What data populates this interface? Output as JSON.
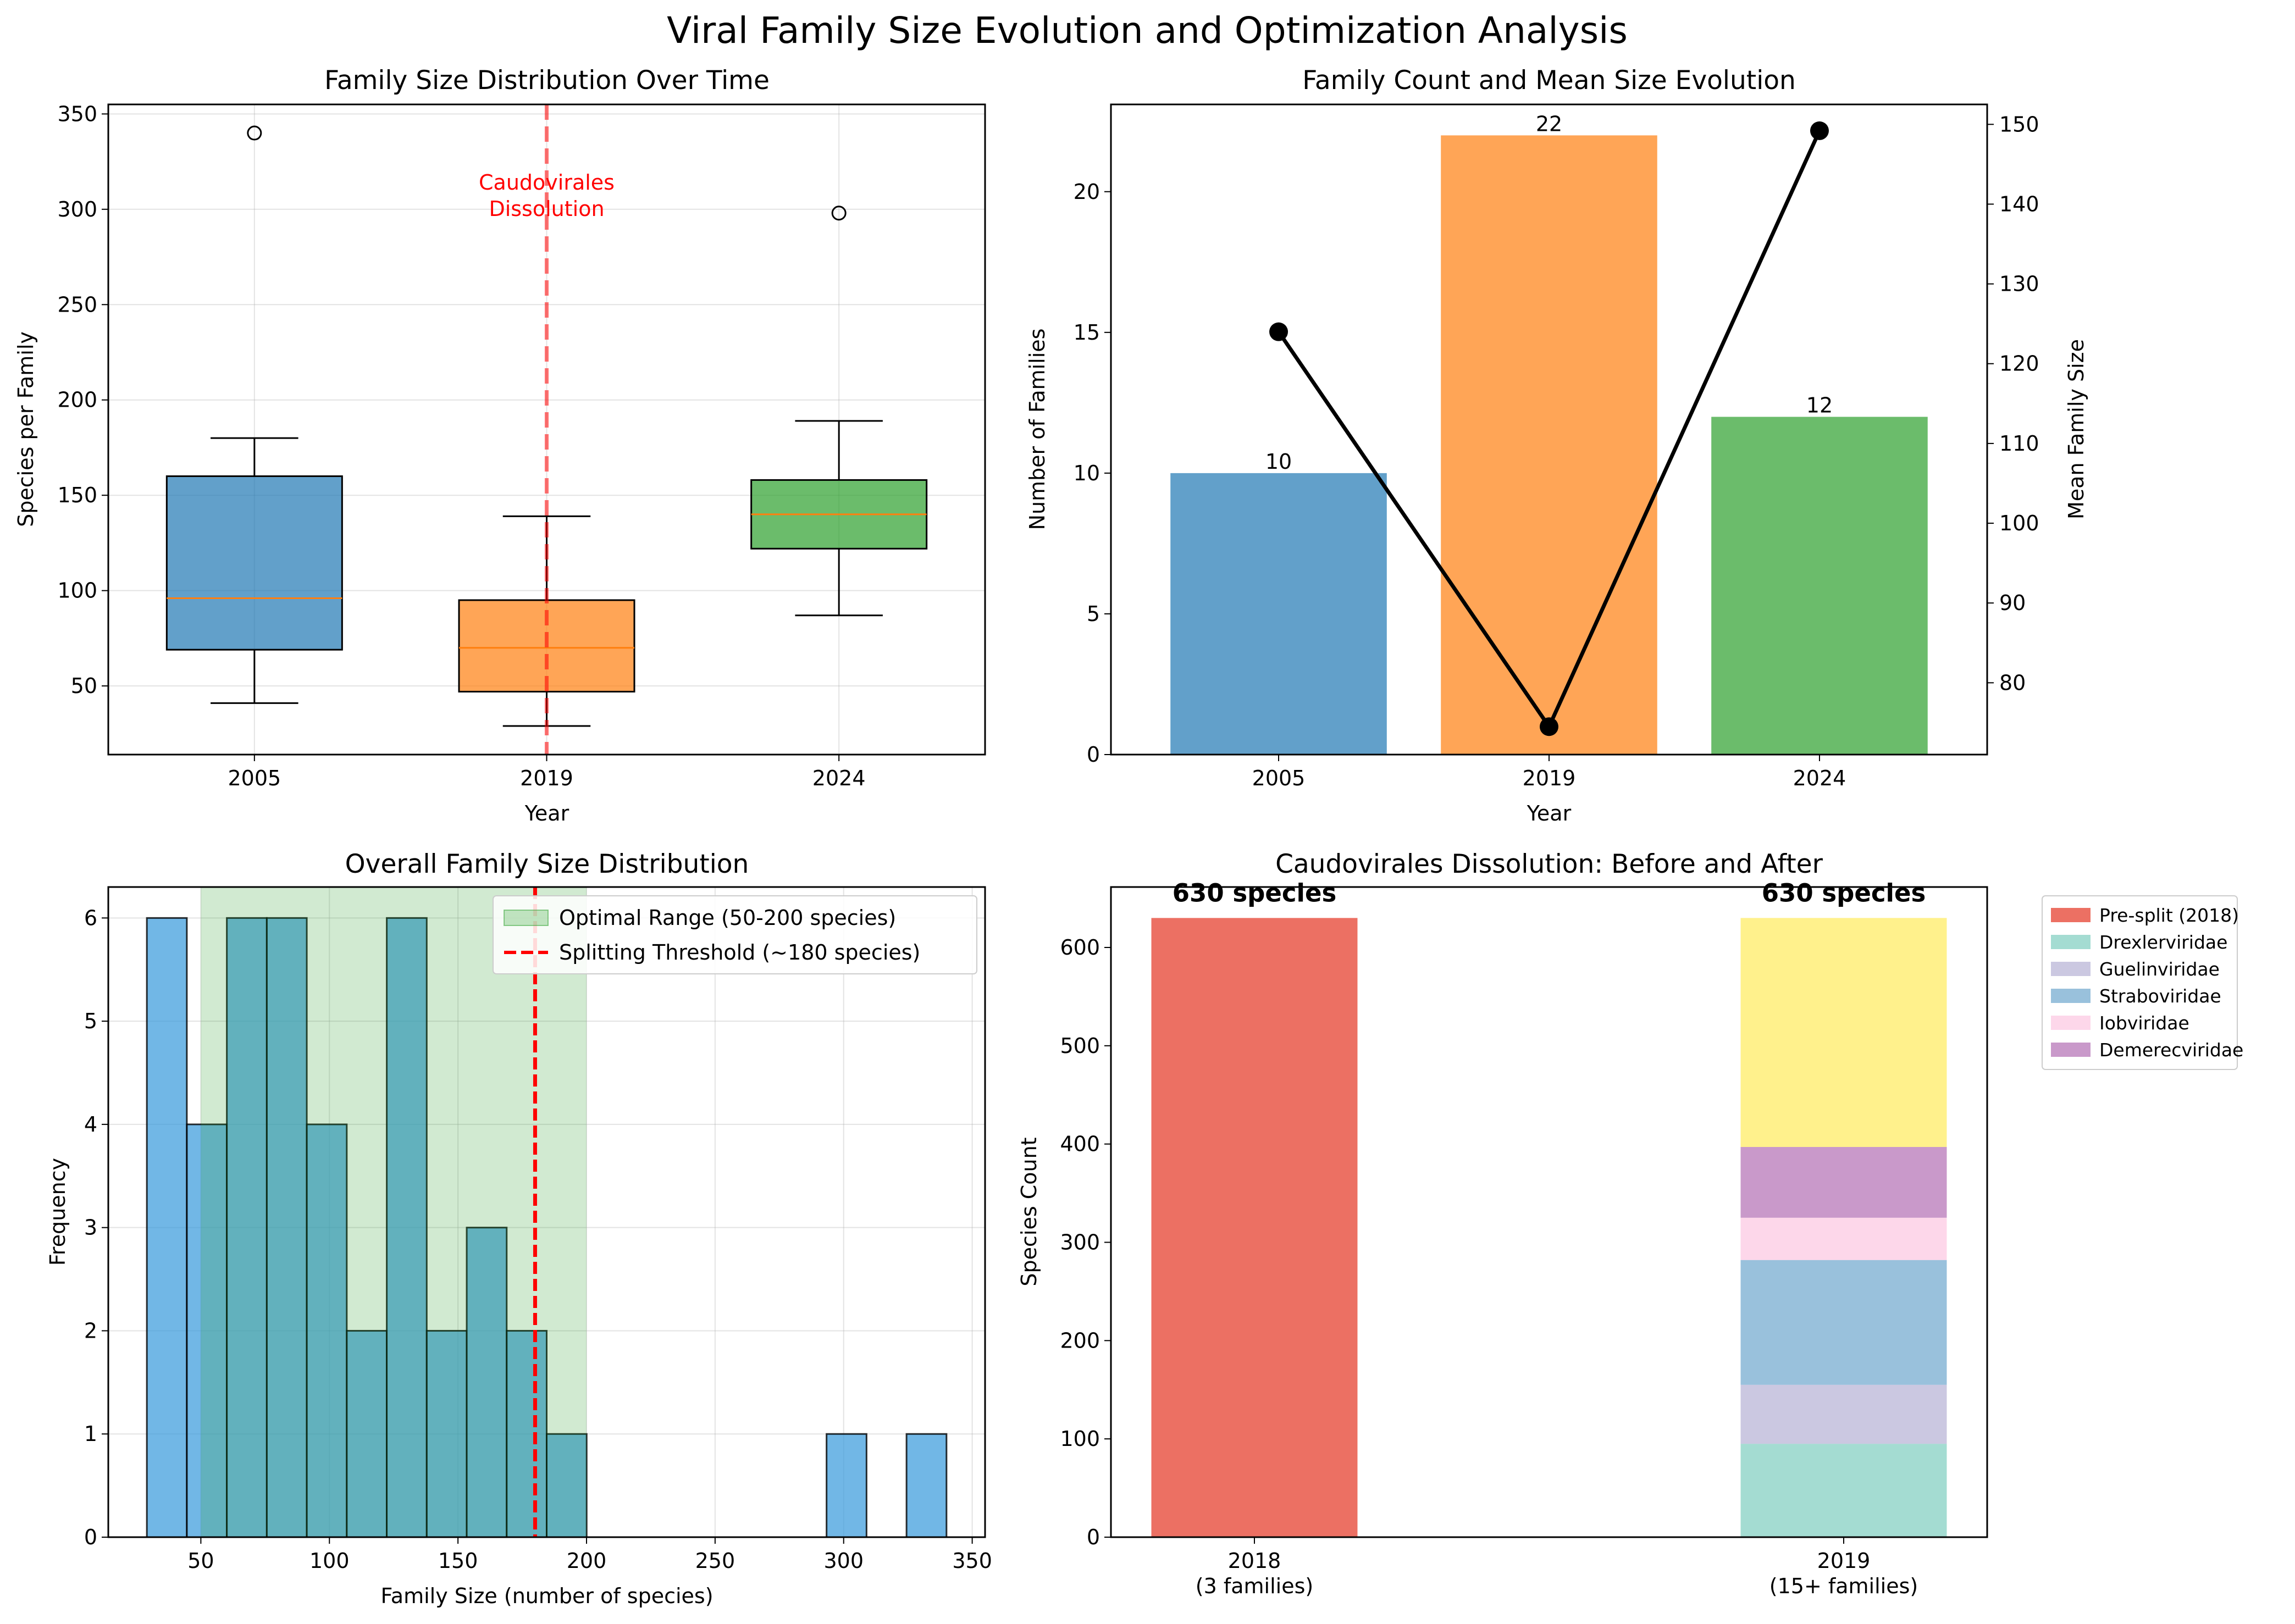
{
  "figure": {
    "title": "Viral Family Size Evolution and Optimization Analysis"
  },
  "chart_data": [
    {
      "id": "boxplot",
      "type": "box",
      "title": "Family Size Distribution Over Time",
      "xlabel": "Year",
      "ylabel": "Species per Family",
      "categories": [
        "2005",
        "2019",
        "2024"
      ],
      "ylim": [
        14,
        355
      ],
      "yticks": [
        50,
        100,
        150,
        200,
        250,
        300,
        350
      ],
      "grid": true,
      "boxes": [
        {
          "label": "2005",
          "whislo": 41,
          "q1": 69,
          "med": 96,
          "q3": 160,
          "whishi": 180,
          "fliers": [
            340
          ],
          "color": "#1f77b4"
        },
        {
          "label": "2019",
          "whislo": 29,
          "q1": 47,
          "med": 70,
          "q3": 95,
          "whishi": 139,
          "fliers": [],
          "color": "#ff7f0e"
        },
        {
          "label": "2024",
          "whislo": 87,
          "q1": 122,
          "med": 140,
          "q3": 158,
          "whishi": 189,
          "fliers": [
            298
          ],
          "color": "#2ca02c"
        }
      ],
      "vline": {
        "x": "2019",
        "color": "#ff0000"
      },
      "annotation": {
        "lines": [
          "Caudovirales",
          "Dissolution"
        ],
        "color": "#ff0000"
      }
    },
    {
      "id": "countmean",
      "type": "bar+line",
      "title": "Family Count and Mean Size Evolution",
      "xlabel": "Year",
      "ylabel": "Number of Families",
      "ylabel_right": "Mean Family Size",
      "categories": [
        "2005",
        "2019",
        "2024"
      ],
      "values": [
        10,
        22,
        12
      ],
      "bar_labels": [
        "10",
        "22",
        "12"
      ],
      "colors": [
        "#1f77b4",
        "#ff7f0e",
        "#2ca02c"
      ],
      "ylim": [
        0,
        23.1
      ],
      "yticks": [
        0,
        5,
        10,
        15,
        20
      ],
      "line_values": [
        124,
        74.5,
        149.2
      ],
      "y2lim": [
        71,
        152.5
      ],
      "y2ticks": [
        80,
        90,
        100,
        110,
        120,
        130,
        140,
        150
      ],
      "line_color": "#000000",
      "grid": false
    },
    {
      "id": "histogram",
      "type": "histogram",
      "title": "Overall Family Size Distribution",
      "xlabel": "Family Size (number of species)",
      "ylabel": "Frequency",
      "bin_edges": [
        29,
        44.55,
        60.1,
        75.65,
        91.2,
        106.75,
        122.3,
        137.85,
        153.4,
        168.95,
        184.5,
        200.05,
        215.6,
        231.15,
        246.7,
        262.25,
        277.8,
        293.35,
        308.9,
        324.45,
        340
      ],
      "counts": [
        6,
        4,
        6,
        6,
        4,
        2,
        6,
        2,
        3,
        2,
        1,
        0,
        0,
        0,
        0,
        0,
        0,
        1,
        0,
        1
      ],
      "xlim": [
        14,
        355
      ],
      "xticks": [
        50,
        100,
        150,
        200,
        250,
        300,
        350
      ],
      "ylim": [
        0,
        6.3
      ],
      "yticks": [
        0,
        1,
        2,
        3,
        4,
        5,
        6
      ],
      "optimal_range": {
        "from": 50,
        "to": 200,
        "label": "Optimal Range (50-200 species)",
        "color": "#2ca02c"
      },
      "threshold": {
        "x": 180,
        "label": "Splitting Threshold (~180 species)",
        "color": "#ff0000"
      },
      "bar_color": "#3498db",
      "grid": true,
      "legend_position": "upper right"
    },
    {
      "id": "stacked",
      "type": "stacked-bar",
      "title": "Caudovirales Dissolution: Before and After",
      "ylabel": "Species Count",
      "categories": [
        {
          "line1": "2018",
          "line2": "(3 families)"
        },
        {
          "line1": "2019",
          "line2": "(15+ families)"
        }
      ],
      "ylim": [
        0,
        661.5
      ],
      "yticks": [
        0,
        100,
        200,
        300,
        400,
        500,
        600
      ],
      "series": [
        {
          "name": "Pre-split (2018)",
          "color": "#e74c3c",
          "values": [
            630,
            0
          ]
        },
        {
          "name": "Drexlerviridae",
          "color": "#8dd3c7",
          "values": [
            0,
            95
          ]
        },
        {
          "name": "Guelinviridae",
          "color": "#bebada",
          "values": [
            0,
            60
          ]
        },
        {
          "name": "Straboviridae",
          "color": "#80b1d3",
          "values": [
            0,
            127
          ]
        },
        {
          "name": "Iobviridae",
          "color": "#fccde5",
          "values": [
            0,
            43
          ]
        },
        {
          "name": "Demerecviridae",
          "color": "#bc80bd",
          "values": [
            0,
            72
          ]
        },
        {
          "color": "#ffed6f",
          "values": [
            0,
            233
          ]
        }
      ],
      "bar_labels": [
        "630 species",
        "630 species"
      ],
      "legend_position": "outside upper right"
    }
  ]
}
